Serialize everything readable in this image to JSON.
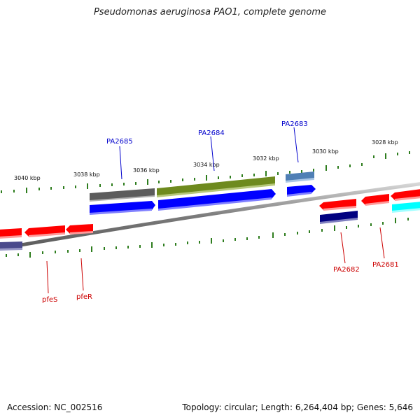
{
  "title": "Pseudomonas aeruginosa PAO1, complete genome",
  "footer": {
    "accession": "Accession: NC_002516",
    "summary": "Topology: circular; Length: 6,264,404 bp; Genes: 5,646"
  },
  "ticks": [
    {
      "label": "3040 kbp"
    },
    {
      "label": "3038 kbp"
    },
    {
      "label": "3036 kbp"
    },
    {
      "label": "3034 kbp"
    },
    {
      "label": "3032 kbp"
    },
    {
      "label": "3030 kbp"
    },
    {
      "label": "3028 kbp"
    }
  ],
  "gene_labels": {
    "forward": [
      "PA2685",
      "PA2684",
      "PA2683"
    ],
    "reverse": [
      "pfeS",
      "pfeR",
      "PA2682",
      "PA2681"
    ]
  },
  "colors": {
    "forward_label": "#0000cc",
    "reverse_label": "#cc0000",
    "tick": "#2e7d1e",
    "backbone": "#888888"
  }
}
